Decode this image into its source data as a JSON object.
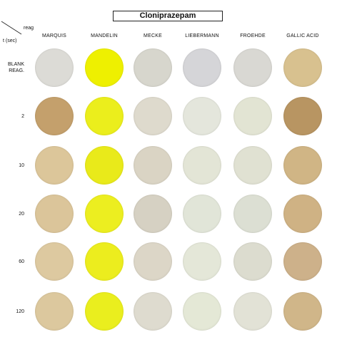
{
  "title": "Cloniprazepam",
  "corner": {
    "reag_label": "reag",
    "time_label": "t (sec)"
  },
  "columns": [
    "MARQUIS",
    "MANDELIN",
    "MECKE",
    "LIEBERMANN",
    "FROEHDE",
    "GALLIC ACID"
  ],
  "rows": [
    {
      "label": "BLANK\nREAG."
    },
    {
      "label": "2"
    },
    {
      "label": "10"
    },
    {
      "label": "20"
    },
    {
      "label": "60"
    },
    {
      "label": "120"
    }
  ],
  "colors": {
    "blank": [
      "#dcdbd6",
      "#eef000",
      "#d7d6cd",
      "#d5d5d8",
      "#d9d8d3",
      "#d8c18f"
    ],
    "t2": [
      "#c4a06c",
      "#ebee1c",
      "#dedacd",
      "#e4e6dc",
      "#e2e4d3",
      "#b89562"
    ],
    "t10": [
      "#dcc69a",
      "#e9ea1a",
      "#dad4c4",
      "#e3e5d6",
      "#e0e1d2",
      "#d0b585"
    ],
    "t20": [
      "#dbc59a",
      "#ecee20",
      "#d6d1c3",
      "#e1e5d8",
      "#dcdfd3",
      "#cfb284"
    ],
    "t60": [
      "#ddc9a0",
      "#eced1e",
      "#dcd6c7",
      "#e4e7d8",
      "#dcdccf",
      "#cdb18a"
    ],
    "t120": [
      "#dcc89e",
      "#eaee1e",
      "#dedbcf",
      "#e4e8d6",
      "#e2e2d6",
      "#d0b689"
    ]
  }
}
